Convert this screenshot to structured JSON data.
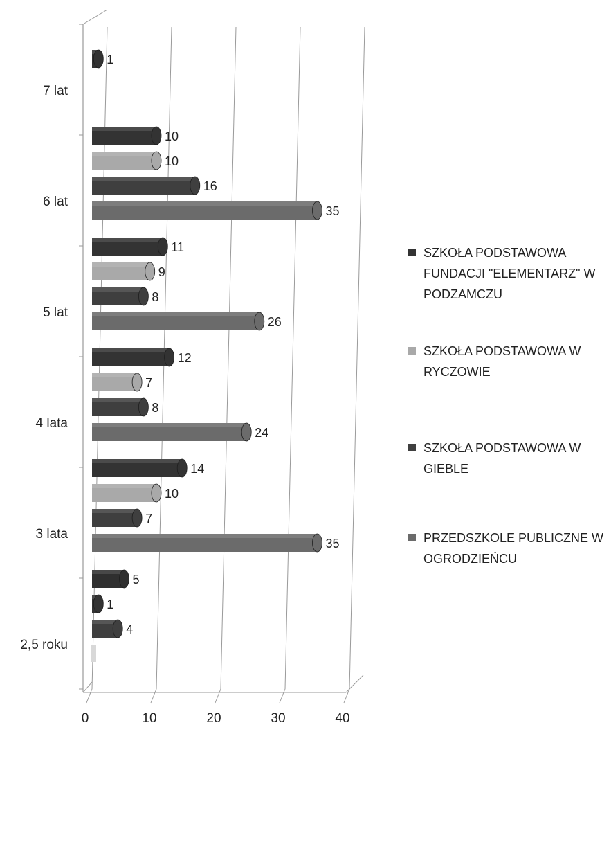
{
  "chart_data": {
    "type": "bar",
    "orientation": "horizontal",
    "style": "3d-cylinder",
    "categories": [
      "2,5 roku",
      "3 lata",
      "4 lata",
      "5 lat",
      "6 lat",
      "7  lat"
    ],
    "series": [
      {
        "name": "PRZEDSZKOLE PUBLICZNE W OGRODZIEŃCU",
        "color": "#6b6b6b",
        "values": [
          0,
          35,
          24,
          26,
          35,
          null
        ]
      },
      {
        "name": "SZKOŁA PODSTAWOWA W GIEBLE",
        "color": "#3f3f3f",
        "values": [
          4,
          7,
          8,
          8,
          16,
          null
        ]
      },
      {
        "name": "SZKOŁA PODSTAWOWA W RYCZOWIE",
        "color": "#a9a9a9",
        "values": [
          null,
          10,
          7,
          9,
          10,
          null
        ]
      },
      {
        "name": "SZKOŁA PODSTAWOWA FUNDACJI \"ELEMENTARZ\" W PODZAMCZU",
        "color": "#333333",
        "values": [
          1,
          14,
          12,
          11,
          10,
          1
        ]
      },
      {
        "name": "",
        "color": "#2f2f2f",
        "values": [
          5,
          null,
          null,
          null,
          null,
          null
        ]
      }
    ],
    "xlim": [
      0,
      40
    ],
    "xticks": [
      "0",
      "10",
      "20",
      "30",
      "40"
    ],
    "grid": true,
    "legend_position": "right",
    "legend": [
      {
        "text": "SZKOŁA PODSTAWOWA FUNDACJI \"ELEMENTARZ\" W PODZAMCZU",
        "color": "#333333"
      },
      {
        "text": "SZKOŁA PODSTAWOWA W RYCZOWIE",
        "color": "#a9a9a9"
      },
      {
        "text": "SZKOŁA PODSTAWOWA W GIEBLE",
        "color": "#3f3f3f"
      },
      {
        "text": "PRZEDSZKOLE PUBLICZNE W OGRODZIEŃCU",
        "color": "#6b6b6b"
      }
    ]
  }
}
